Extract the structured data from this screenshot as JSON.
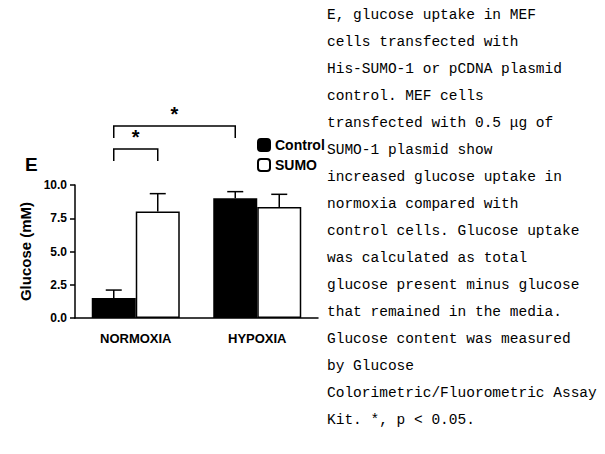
{
  "chart_data": {
    "type": "bar",
    "title": "E",
    "y_label": "Glucose (mM)",
    "categories": [
      "NORMOXIA",
      "HYPOXIA"
    ],
    "series": [
      {
        "name": "Control",
        "color": "#000000",
        "values": [
          1.5,
          9.0
        ],
        "errors": [
          0.6,
          0.5
        ]
      },
      {
        "name": "SUMO",
        "color": "#ffffff",
        "values": [
          8.0,
          8.35
        ],
        "errors": [
          1.35,
          0.95
        ]
      }
    ],
    "ylim": [
      0,
      10
    ],
    "yticks": [
      {
        "value": 0,
        "label": "0.0"
      },
      {
        "value": 2.5,
        "label": "2.5"
      },
      {
        "value": 5,
        "label": "5.0"
      },
      {
        "value": 7.5,
        "label": "7.5"
      },
      {
        "value": 10,
        "label": "10.0"
      }
    ],
    "grid": false,
    "legend": "top-right",
    "significance": [
      {
        "from": {
          "category": "NORMOXIA",
          "series": "Control"
        },
        "to": {
          "category": "NORMOXIA",
          "series": "SUMO"
        },
        "label": "*"
      },
      {
        "from": {
          "category": "NORMOXIA",
          "series": "Control"
        },
        "to": {
          "category": "HYPOXIA",
          "series": "Control"
        },
        "label": "*"
      }
    ]
  },
  "caption": [
    "E, glucose uptake in MEF",
    "cells transfected with",
    "His-SUMO-1 or pCDNA plasmid",
    "control. MEF cells",
    "transfected with 0.5 μg of",
    "SUMO-1 plasmid show",
    "increased glucose uptake in",
    "normoxia compared with",
    "control cells. Glucose uptake",
    "was calculated as total",
    "glucose present minus glucose",
    "that remained in the media.",
    "Glucose content was measured",
    "by Glucose",
    "Colorimetric/Fluorometric Assay",
    "Kit. *, p < 0.05."
  ]
}
